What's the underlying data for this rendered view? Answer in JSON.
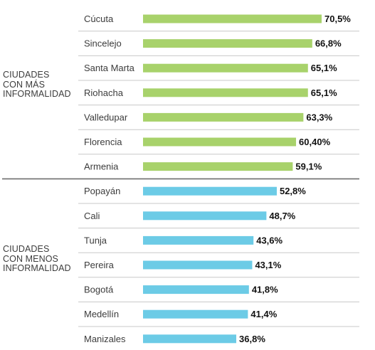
{
  "chart_data": {
    "type": "bar",
    "orientation": "horizontal",
    "groups": [
      {
        "name": "CIUDADES CON MÁS INFORMALIDAD",
        "label_lines": [
          "CIUDADES",
          "CON MÁS",
          "INFORMALIDAD"
        ],
        "color": "#a8d26b",
        "categories": [
          "Cúcuta",
          "Sincelejo",
          "Santa Marta",
          "Riohacha",
          "Valledupar",
          "Florencia",
          "Armenia"
        ],
        "values": [
          70.5,
          66.8,
          65.1,
          65.1,
          63.3,
          60.4,
          59.1
        ],
        "labels": [
          "70,5%",
          "66,8%",
          "65,1%",
          "65,1%",
          "63,3%",
          "60,40%",
          "59,1%"
        ]
      },
      {
        "name": "CIUDADES CON MENOS INFORMALIDAD",
        "label_lines": [
          "CIUDADES",
          "CON MENOS",
          "INFORMALIDAD"
        ],
        "color": "#6ccbe6",
        "categories": [
          "Popayán",
          "Cali",
          "Tunja",
          "Pereira",
          "Bogotá",
          "Medellín",
          "Manizales"
        ],
        "values": [
          52.8,
          48.7,
          43.6,
          43.1,
          41.8,
          41.4,
          36.8
        ],
        "labels": [
          "52,8%",
          "48,7%",
          "43,6%",
          "43,1%",
          "41,8%",
          "41,4%",
          "36,8%"
        ]
      }
    ],
    "unit": "%",
    "grid": false,
    "legend": "none"
  }
}
